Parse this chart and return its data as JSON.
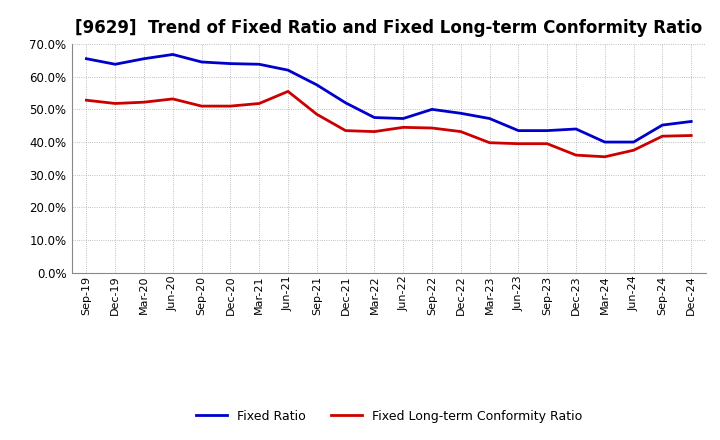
{
  "title": "[9629]  Trend of Fixed Ratio and Fixed Long-term Conformity Ratio",
  "labels": [
    "Sep-19",
    "Dec-19",
    "Mar-20",
    "Jun-20",
    "Sep-20",
    "Dec-20",
    "Mar-21",
    "Jun-21",
    "Sep-21",
    "Dec-21",
    "Mar-22",
    "Jun-22",
    "Sep-22",
    "Dec-22",
    "Mar-23",
    "Jun-23",
    "Sep-23",
    "Dec-23",
    "Mar-24",
    "Jun-24",
    "Sep-24",
    "Dec-24"
  ],
  "fixed_ratio": [
    0.655,
    0.638,
    0.655,
    0.668,
    0.645,
    0.64,
    0.638,
    0.62,
    0.575,
    0.52,
    0.475,
    0.472,
    0.5,
    0.488,
    0.472,
    0.435,
    0.435,
    0.44,
    0.4,
    0.4,
    0.452,
    0.463
  ],
  "fixed_lt_ratio": [
    0.528,
    0.518,
    0.522,
    0.532,
    0.51,
    0.51,
    0.518,
    0.555,
    0.485,
    0.435,
    0.432,
    0.445,
    0.443,
    0.432,
    0.398,
    0.395,
    0.395,
    0.36,
    0.355,
    0.375,
    0.418,
    0.42
  ],
  "fixed_ratio_color": "#0000CC",
  "fixed_lt_ratio_color": "#CC0000",
  "background_color": "#ffffff",
  "plot_bg_color": "#ffffff",
  "ylim": [
    0.0,
    0.7
  ],
  "yticks": [
    0.0,
    0.1,
    0.2,
    0.3,
    0.4,
    0.5,
    0.6,
    0.7
  ],
  "grid_color": "#aaaaaa",
  "title_fontsize": 12,
  "legend_labels": [
    "Fixed Ratio",
    "Fixed Long-term Conformity Ratio"
  ],
  "line_width": 2.0
}
